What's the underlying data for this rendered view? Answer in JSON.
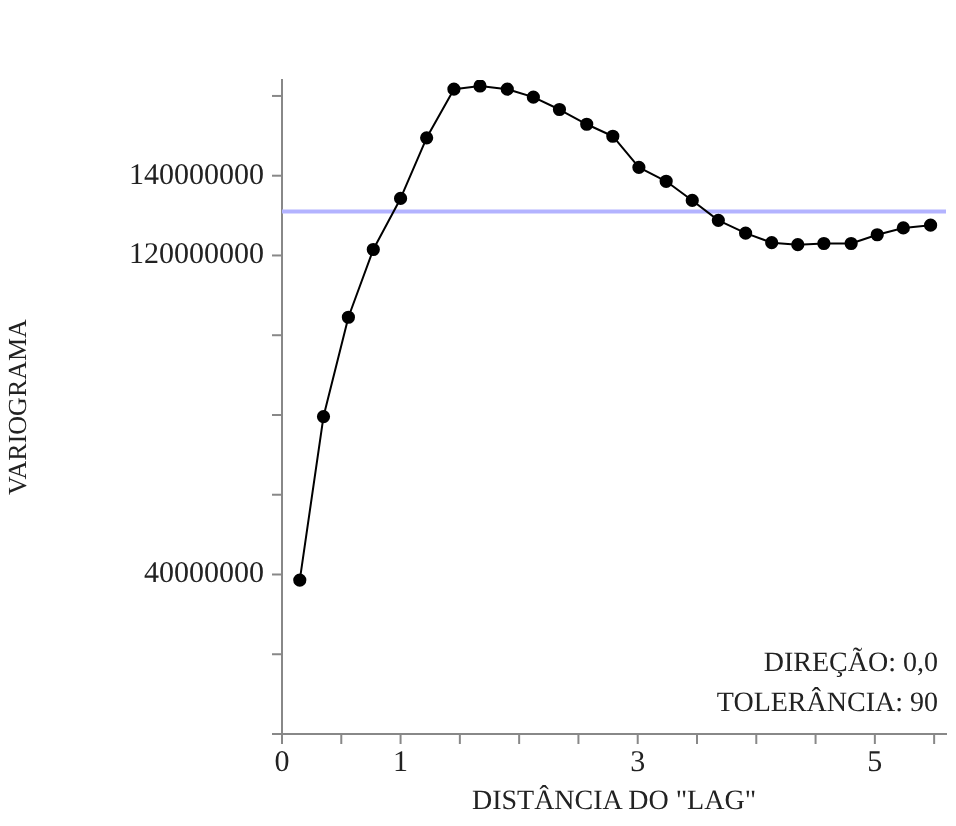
{
  "chart_data": {
    "type": "line",
    "xlabel": "DISTÂNCIA DO \"LAG\"",
    "ylabel": "VARIOGRAMA",
    "x": [
      0.15,
      0.35,
      0.56,
      0.77,
      1.0,
      1.22,
      1.45,
      1.67,
      1.9,
      2.12,
      2.34,
      2.57,
      2.79,
      3.01,
      3.24,
      3.46,
      3.68,
      3.91,
      4.13,
      4.35,
      4.57,
      4.8,
      5.02,
      5.24,
      5.47
    ],
    "series": [
      {
        "color": "#000000",
        "values": [
          38600000,
          79600000,
          104500000,
          121500000,
          134300000,
          149500000,
          161700000,
          162500000,
          161700000,
          159700000,
          156600000,
          152900000,
          149900000,
          142100000,
          138600000,
          133800000,
          128800000,
          125600000,
          123200000,
          122700000,
          123000000,
          123000000,
          125200000,
          126900000,
          127600000
        ]
      }
    ],
    "marker": "circle",
    "line_style": "solid",
    "grid": false,
    "legend": false,
    "xlim": [
      0,
      5.6
    ],
    "xticks": [
      0,
      {
        "value": 0.5,
        "label": null
      },
      1,
      {
        "value": 1.5,
        "label": null
      },
      {
        "value": 2,
        "label": null
      },
      {
        "value": 2.5,
        "label": null
      },
      3,
      {
        "value": 3.5,
        "label": null
      },
      {
        "value": 4,
        "label": null
      },
      {
        "value": 4.5,
        "label": null
      },
      5,
      {
        "value": 5.5,
        "label": null
      }
    ],
    "ylim": [
      0,
      164000000
    ],
    "yticks": [
      {
        "value": 0,
        "label": null
      },
      {
        "value": 20000000,
        "label": null
      },
      40000000,
      {
        "value": 60000000,
        "label": null
      },
      {
        "value": 80000000,
        "label": null
      },
      {
        "value": 100000000,
        "label": null
      },
      120000000,
      140000000,
      {
        "value": 160000000,
        "label": null
      }
    ],
    "ref_lines": [
      {
        "axis": "y",
        "value": 131000000,
        "color": "#b3b3ff"
      }
    ],
    "annotations": [
      "DIREÇÃO: 0,0",
      "TOLERÂNCIA: 90"
    ]
  }
}
